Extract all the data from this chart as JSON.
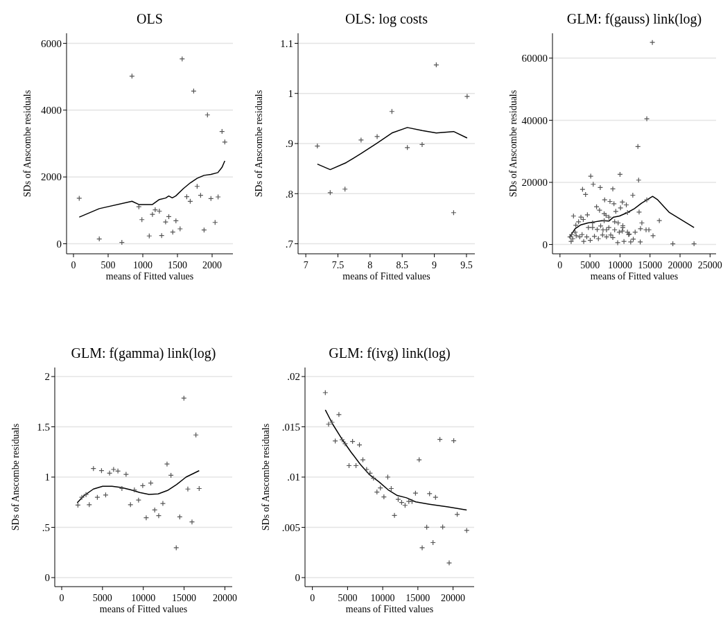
{
  "chart_data": [
    {
      "type": "scatter",
      "title": "OLS",
      "xlabel": "means of Fitted values",
      "ylabel": "SDs of Anscombe residuals",
      "xlim": [
        -100,
        2300
      ],
      "ylim": [
        -300,
        6300
      ],
      "xticks": [
        0,
        500,
        1000,
        1500,
        2000
      ],
      "yticks": [
        0,
        2000,
        4000,
        6000
      ],
      "grid": "y",
      "series": [
        {
          "marker": "cross",
          "color": "#555555",
          "x": [
            83,
            372,
            698,
            844,
            943,
            987,
            1093,
            1139,
            1179,
            1239,
            1272,
            1329,
            1375,
            1432,
            1478,
            1538,
            1568,
            1634,
            1684,
            1734,
            1784,
            1834,
            1884,
            1933,
            1983,
            2043,
            2086,
            2143,
            2183
          ],
          "values": [
            1361,
            144,
            41,
            5017,
            1107,
            722,
            234,
            880,
            1017,
            976,
            247,
            653,
            811,
            350,
            687,
            447,
            5533,
            1409,
            1271,
            4571,
            1718,
            1450,
            412,
            3856,
            1354,
            639,
            1402,
            3361,
            3045
          ]
        },
        {
          "type": "line",
          "color": "#000000",
          "x": [
            83,
            372,
            844,
            943,
            1139,
            1239,
            1329,
            1375,
            1425,
            1475,
            1585,
            1684,
            1784,
            1884,
            1983,
            2083,
            2143,
            2183
          ],
          "values": [
            797,
            1052,
            1272,
            1175,
            1175,
            1326,
            1368,
            1430,
            1375,
            1430,
            1650,
            1822,
            1959,
            2048,
            2076,
            2131,
            2289,
            2481
          ]
        }
      ]
    },
    {
      "type": "scatter",
      "title": "OLS: log costs",
      "xlabel": "means of Fitted values",
      "ylabel": "SDs of Anscombe residuals",
      "xlim": [
        6.88,
        9.63
      ],
      "ylim": [
        0.68,
        1.12
      ],
      "xticks": [
        7,
        7.5,
        8,
        8.5,
        9,
        9.5
      ],
      "yticks": [
        {
          "value": 0.7,
          "label": ".7"
        },
        {
          "value": 0.8,
          "label": ".8"
        },
        {
          "value": 0.9,
          "label": ".9"
        },
        1,
        1.1
      ],
      "grid": "y",
      "series": [
        {
          "marker": "cross",
          "color": "#555555",
          "x": [
            7.18,
            7.38,
            7.61,
            7.86,
            8.11,
            8.34,
            8.58,
            8.81,
            9.03,
            9.3,
            9.51
          ],
          "values": [
            0.895,
            0.802,
            0.809,
            0.907,
            0.914,
            0.964,
            0.892,
            0.898,
            1.057,
            0.762,
            0.994
          ]
        },
        {
          "type": "line",
          "color": "#000000",
          "x": [
            7.18,
            7.38,
            7.63,
            7.86,
            8.11,
            8.34,
            8.58,
            8.81,
            9.03,
            9.3,
            9.51
          ],
          "values": [
            0.859,
            0.848,
            0.862,
            0.88,
            0.901,
            0.921,
            0.932,
            0.926,
            0.921,
            0.924,
            0.911
          ]
        }
      ]
    },
    {
      "type": "scatter",
      "title": "GLM: f(gauss) link(log)",
      "xlabel": "means of Fitted values",
      "ylabel": "SDs of Anscombe residuals",
      "xlim": [
        -1250,
        26000
      ],
      "ylim": [
        -3000,
        68000
      ],
      "xticks": [
        0,
        5000,
        10000,
        15000,
        20000,
        25000
      ],
      "yticks": [
        0,
        20000,
        40000,
        60000
      ],
      "grid": "y",
      "series": [
        {
          "marker": "cross",
          "color": "#555555",
          "x": [
            15390,
            14460,
            12980,
            13100,
            10000,
            5120,
            5540,
            6710,
            8800,
            3760,
            4260,
            12130,
            7440,
            8330,
            8990,
            10390,
            11050,
            14460,
            6090,
            6590,
            7360,
            7670,
            9300,
            10080,
            11240,
            13180,
            2250,
            3490,
            4570,
            3880,
            3100,
            2640,
            5430,
            7360,
            8140,
            9110,
            9690,
            10470,
            13640,
            16550,
            14340,
            13410,
            14810,
            2520,
            1940,
            1670,
            1860,
            2130,
            2710,
            3290,
            3680,
            4460,
            3950,
            5040,
            5740,
            6400,
            7090,
            7750,
            8450,
            8800,
            9610,
            10660,
            11780,
            11550,
            12210,
            12520,
            13370,
            15500,
            18800,
            22330,
            4730,
            5430,
            6200,
            6780,
            7170,
            8140,
            9110,
            9880,
            10390,
            10470,
            11240,
            11430,
            7750
          ],
          "values": [
            65060,
            40470,
            31530,
            20720,
            22580,
            21990,
            19380,
            18330,
            17890,
            17740,
            16100,
            15870,
            14380,
            13860,
            13120,
            13640,
            12740,
            14380,
            12150,
            11030,
            9910,
            9390,
            10660,
            11780,
            10290,
            10430,
            9170,
            8790,
            9540,
            8050,
            7300,
            6190,
            6930,
            7680,
            8790,
            7300,
            6930,
            6040,
            6930,
            7680,
            4700,
            5070,
            4700,
            3950,
            3200,
            2460,
            970,
            1860,
            2830,
            2460,
            3200,
            2460,
            970,
            1340,
            2610,
            1860,
            3060,
            2460,
            3060,
            2240,
            600,
            970,
            820,
            3350,
            1710,
            3950,
            820,
            2830,
            220,
            220,
            5440,
            5440,
            4840,
            5960,
            4700,
            5440,
            4700,
            3950,
            4320,
            5440,
            3950,
            3200,
            4700
          ]
        },
        {
          "type": "line",
          "color": "#000000",
          "x": [
            1550,
            2520,
            3490,
            4650,
            5810,
            6980,
            8140,
            8910,
            9920,
            11240,
            12400,
            13570,
            15430,
            16280,
            18220,
            22330
          ],
          "values": [
            2240,
            5070,
            6340,
            6930,
            7300,
            7680,
            7530,
            8790,
            9170,
            10290,
            11550,
            13270,
            15500,
            14380,
            10290,
            5440
          ]
        }
      ]
    },
    {
      "type": "scatter",
      "title": "GLM: f(gamma) link(log)",
      "xlabel": "means of Fitted values",
      "ylabel": "SDs of Anscombe residuals",
      "xlim": [
        -850,
        20900
      ],
      "ylim": [
        -0.09,
        2.09
      ],
      "xticks": [
        0,
        5000,
        10000,
        15000,
        20000
      ],
      "yticks": [
        0,
        {
          "value": 0.5,
          "label": ".5"
        },
        1,
        1.5,
        2
      ],
      "grid": "y",
      "series": [
        {
          "marker": "cross",
          "color": "#555555",
          "x": [
            1990,
            2470,
            2980,
            3380,
            3890,
            4370,
            4880,
            5390,
            5870,
            6360,
            6890,
            7380,
            7890,
            8430,
            8910,
            9420,
            9930,
            10360,
            10920,
            11400,
            11890,
            12400,
            12910,
            13390,
            14040,
            14470,
            14980,
            15460,
            15970,
            16450,
            16850
          ],
          "values": [
            0.721,
            0.799,
            0.826,
            0.725,
            1.085,
            0.799,
            1.064,
            0.822,
            1.039,
            1.076,
            1.06,
            0.886,
            1.027,
            0.725,
            0.872,
            0.771,
            0.915,
            0.595,
            0.941,
            0.673,
            0.616,
            0.737,
            1.13,
            1.018,
            0.297,
            0.604,
            1.785,
            0.881,
            0.554,
            1.419,
            0.886
          ]
        },
        {
          "type": "line",
          "color": "#000000",
          "x": [
            1900,
            2750,
            3890,
            5020,
            6160,
            7290,
            8430,
            9560,
            10700,
            11830,
            12970,
            14100,
            15240,
            16850
          ],
          "values": [
            0.744,
            0.817,
            0.881,
            0.908,
            0.908,
            0.897,
            0.874,
            0.847,
            0.828,
            0.833,
            0.867,
            0.927,
            1.0,
            1.064
          ]
        }
      ]
    },
    {
      "type": "scatter",
      "title": "GLM: f(ivg) link(log)",
      "xlabel": "means of Fitted values",
      "ylabel": "SDs of Anscombe residuals",
      "xlim": [
        -1050,
        23000
      ],
      "ylim": [
        -0.0009,
        0.0209
      ],
      "xticks": [
        0,
        5000,
        10000,
        15000,
        20000
      ],
      "yticks": [
        0,
        {
          "value": 0.005,
          "label": ".005"
        },
        {
          "value": 0.01,
          "label": ".01"
        },
        {
          "value": 0.015,
          "label": ".015"
        },
        {
          "value": 0.02,
          "label": ".02"
        }
      ],
      "grid": "y",
      "series": [
        {
          "marker": "cross",
          "color": "#555555",
          "x": [
            1840,
            2300,
            2790,
            3250,
            3770,
            4230,
            4660,
            5210,
            5710,
            6200,
            6690,
            7180,
            7710,
            8200,
            8690,
            9180,
            9670,
            10170,
            10720,
            11210,
            11670,
            12200,
            12690,
            13180,
            13710,
            14170,
            14660,
            15180,
            15610,
            16260,
            16660,
            17150,
            17510,
            18130,
            18530,
            19450,
            20100,
            20590,
            21940
          ],
          "values": [
            0.0184,
            0.01526,
            0.01545,
            0.01359,
            0.01622,
            0.01371,
            0.01332,
            0.01114,
            0.01355,
            0.01114,
            0.0132,
            0.01172,
            0.01076,
            0.01039,
            0.00989,
            0.00851,
            0.00892,
            0.00803,
            0.01,
            0.00886,
            0.00618,
            0.00778,
            0.00748,
            0.00719,
            0.00757,
            0.00757,
            0.0084,
            0.01172,
            0.00297,
            0.00501,
            0.00835,
            0.00348,
            0.00799,
            0.01375,
            0.00503,
            0.00146,
            0.01362,
            0.00629,
            0.00469
          ]
        },
        {
          "type": "line",
          "color": "#000000",
          "x": [
            1840,
            2890,
            4200,
            5510,
            6820,
            8130,
            9440,
            10760,
            12070,
            13380,
            14690,
            16660,
            19280,
            21940
          ],
          "values": [
            0.01668,
            0.01526,
            0.01378,
            0.01247,
            0.01126,
            0.01023,
            0.00954,
            0.00874,
            0.00817,
            0.00794,
            0.00753,
            0.0073,
            0.00703,
            0.00673
          ]
        }
      ]
    }
  ]
}
